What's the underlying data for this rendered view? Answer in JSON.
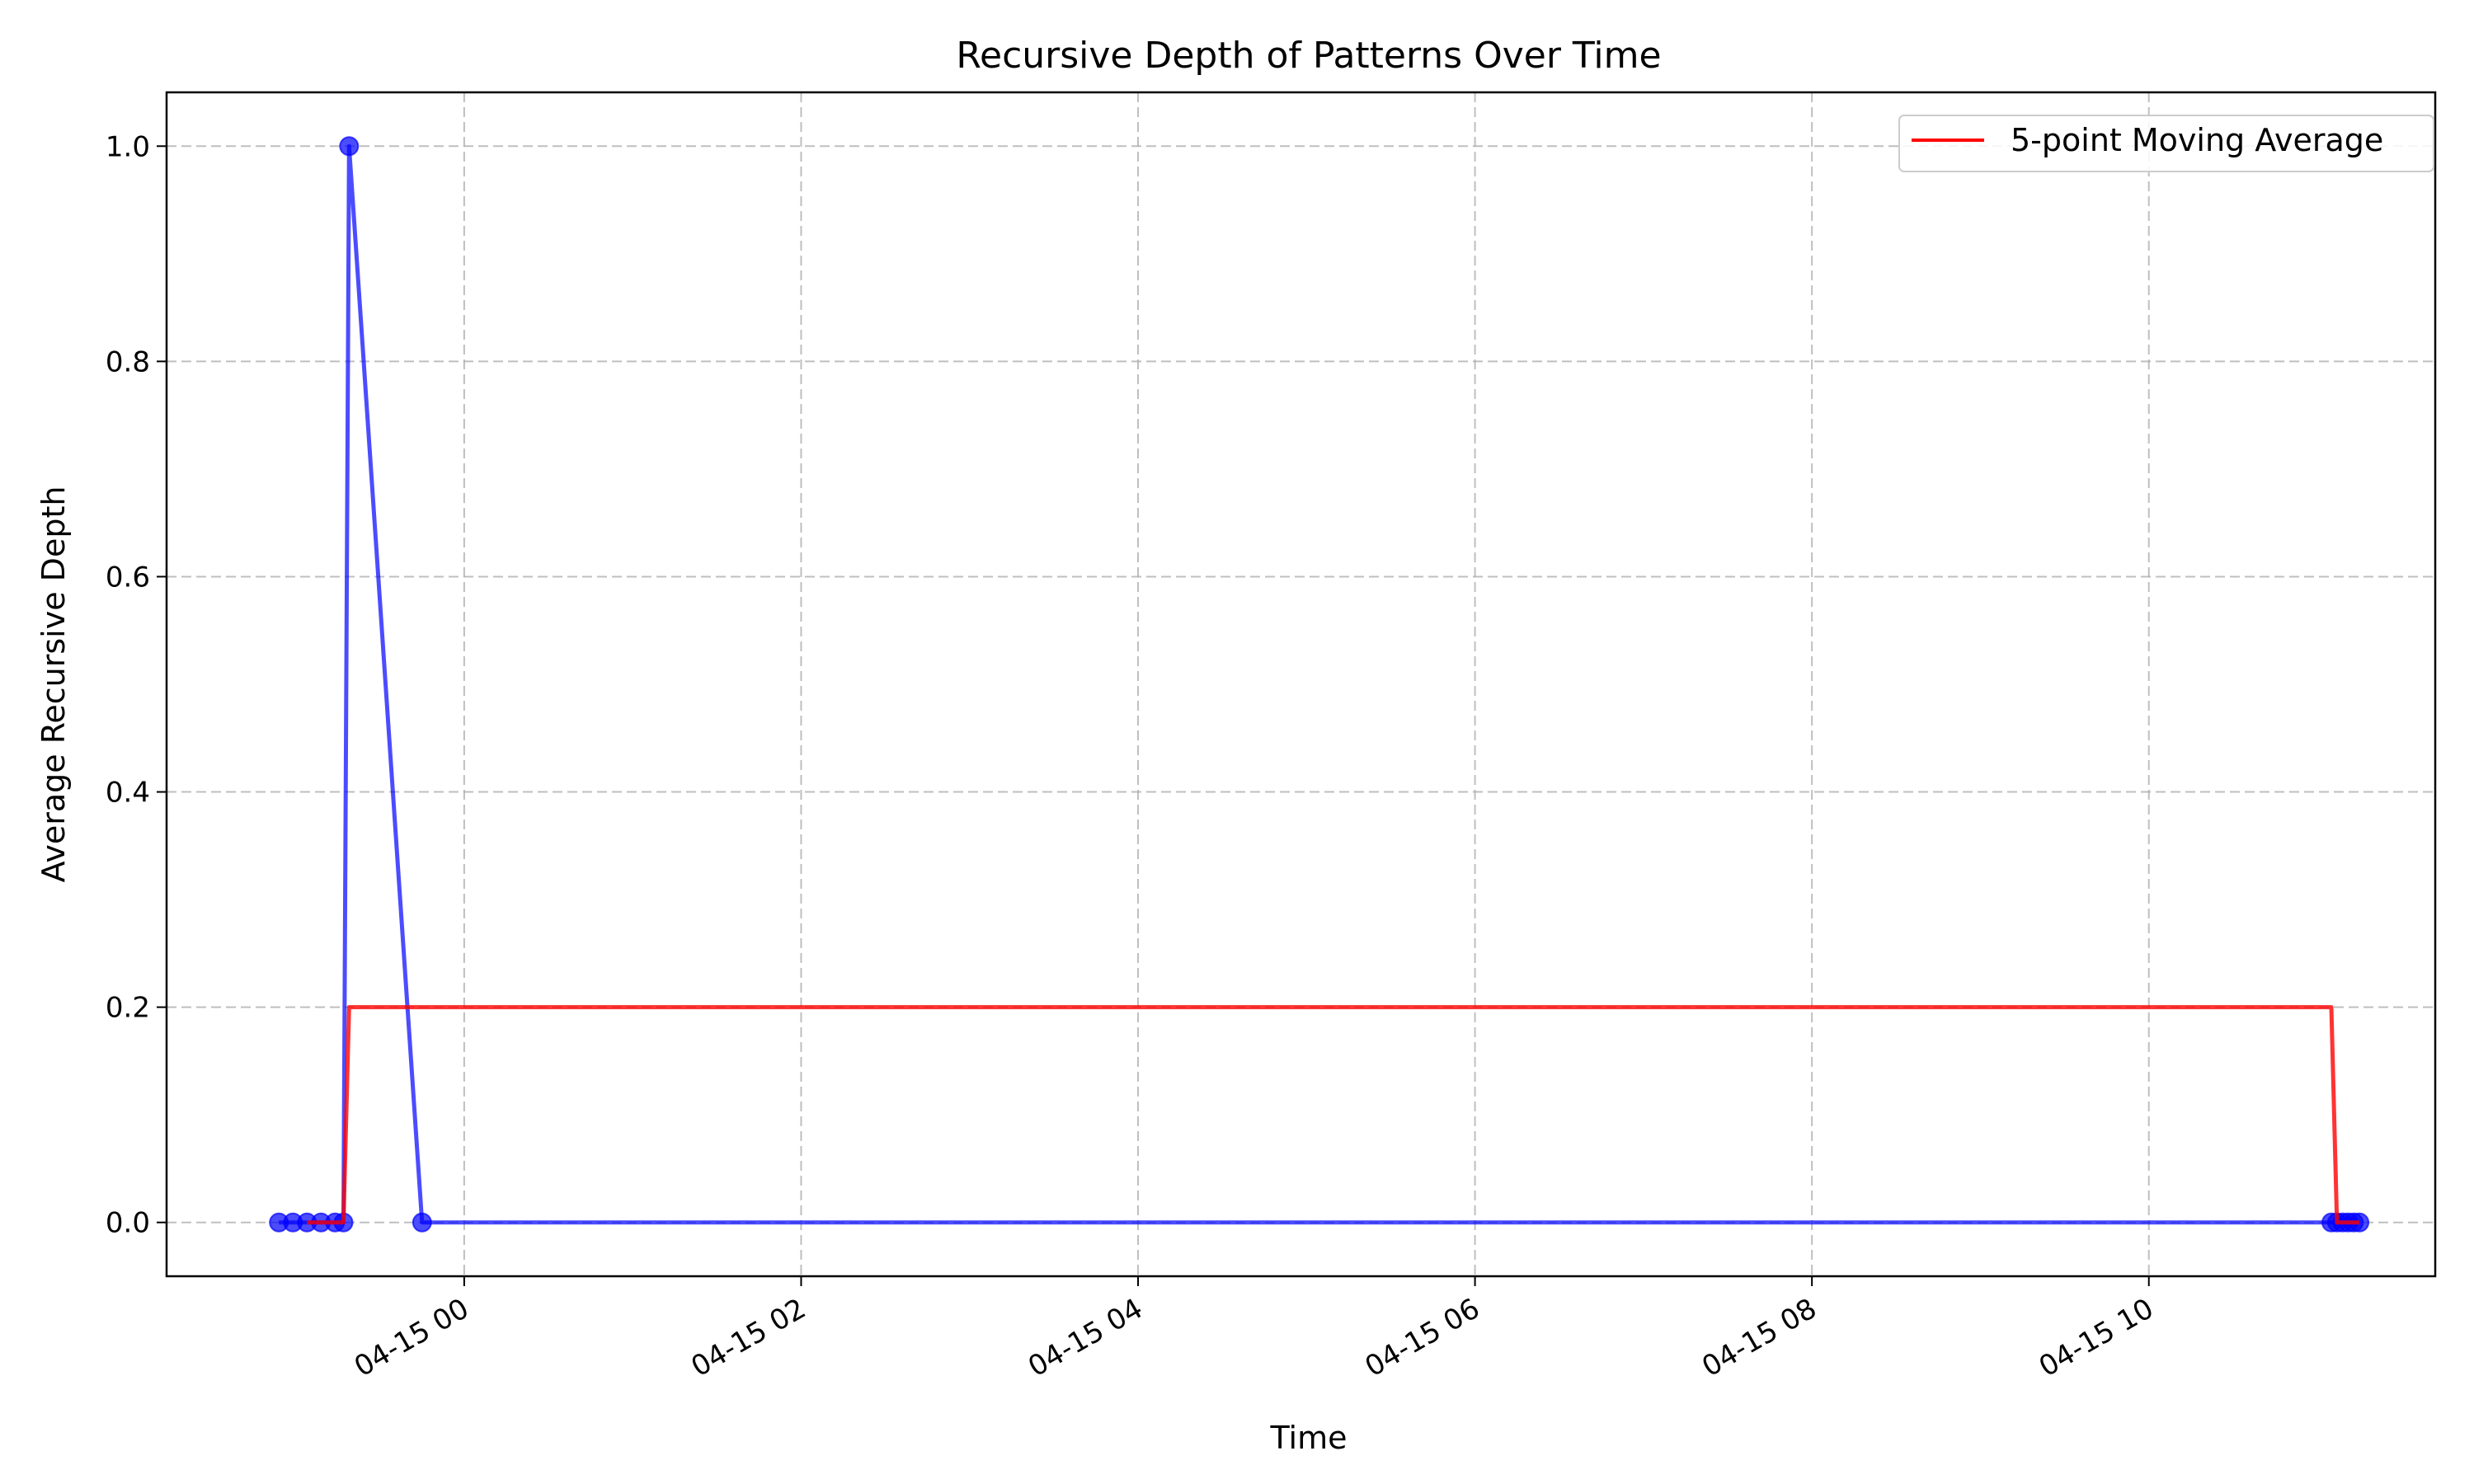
{
  "chart_data": {
    "type": "line",
    "title": "Recursive Depth of Patterns Over Time",
    "xlabel": "Time",
    "ylabel": "Average Recursive Depth",
    "x_axis": {
      "kind": "datetime",
      "range": [
        "2025-04-14T22:14",
        "2025-04-15T11:42"
      ],
      "ticks": [
        {
          "value": "2025-04-15T00:00",
          "label": "04-15 00"
        },
        {
          "value": "2025-04-15T02:00",
          "label": "04-15 02"
        },
        {
          "value": "2025-04-15T04:00",
          "label": "04-15 04"
        },
        {
          "value": "2025-04-15T06:00",
          "label": "04-15 06"
        },
        {
          "value": "2025-04-15T08:00",
          "label": "04-15 08"
        },
        {
          "value": "2025-04-15T10:00",
          "label": "04-15 10"
        }
      ]
    },
    "y_axis": {
      "range": [
        -0.05,
        1.05
      ],
      "ticks": [
        {
          "value": 0.0,
          "label": "0.0"
        },
        {
          "value": 0.2,
          "label": "0.2"
        },
        {
          "value": 0.4,
          "label": "0.4"
        },
        {
          "value": 0.6,
          "label": "0.6"
        },
        {
          "value": 0.8,
          "label": "0.8"
        },
        {
          "value": 1.0,
          "label": "1.0"
        }
      ]
    },
    "grid": true,
    "legend": {
      "placement": "top-right"
    },
    "series": [
      {
        "name": "",
        "color": "#0000ff",
        "markers": true,
        "x": [
          "2025-04-14T22:54",
          "2025-04-14T22:59",
          "2025-04-14T23:04",
          "2025-04-14T23:09",
          "2025-04-14T23:14",
          "2025-04-14T23:17",
          "2025-04-14T23:19",
          "2025-04-14T23:45",
          "2025-04-15T11:05",
          "2025-04-15T11:07",
          "2025-04-15T11:09",
          "2025-04-15T11:11",
          "2025-04-15T11:13",
          "2025-04-15T11:15"
        ],
        "values": [
          0,
          0,
          0,
          0,
          0,
          0,
          1,
          0,
          0,
          0,
          0,
          0,
          0,
          0
        ]
      },
      {
        "name": "5-point Moving Average",
        "color": "#ff0000",
        "markers": false,
        "step": true,
        "x": [
          "2025-04-14T23:04",
          "2025-04-14T23:09",
          "2025-04-14T23:14",
          "2025-04-14T23:17",
          "2025-04-14T23:19",
          "2025-04-15T11:05",
          "2025-04-15T11:07",
          "2025-04-15T11:09",
          "2025-04-15T11:11",
          "2025-04-15T11:13",
          "2025-04-15T11:15"
        ],
        "values": [
          0,
          0,
          0,
          0,
          0.2,
          0.2,
          0,
          0,
          0,
          0,
          0
        ]
      }
    ]
  }
}
